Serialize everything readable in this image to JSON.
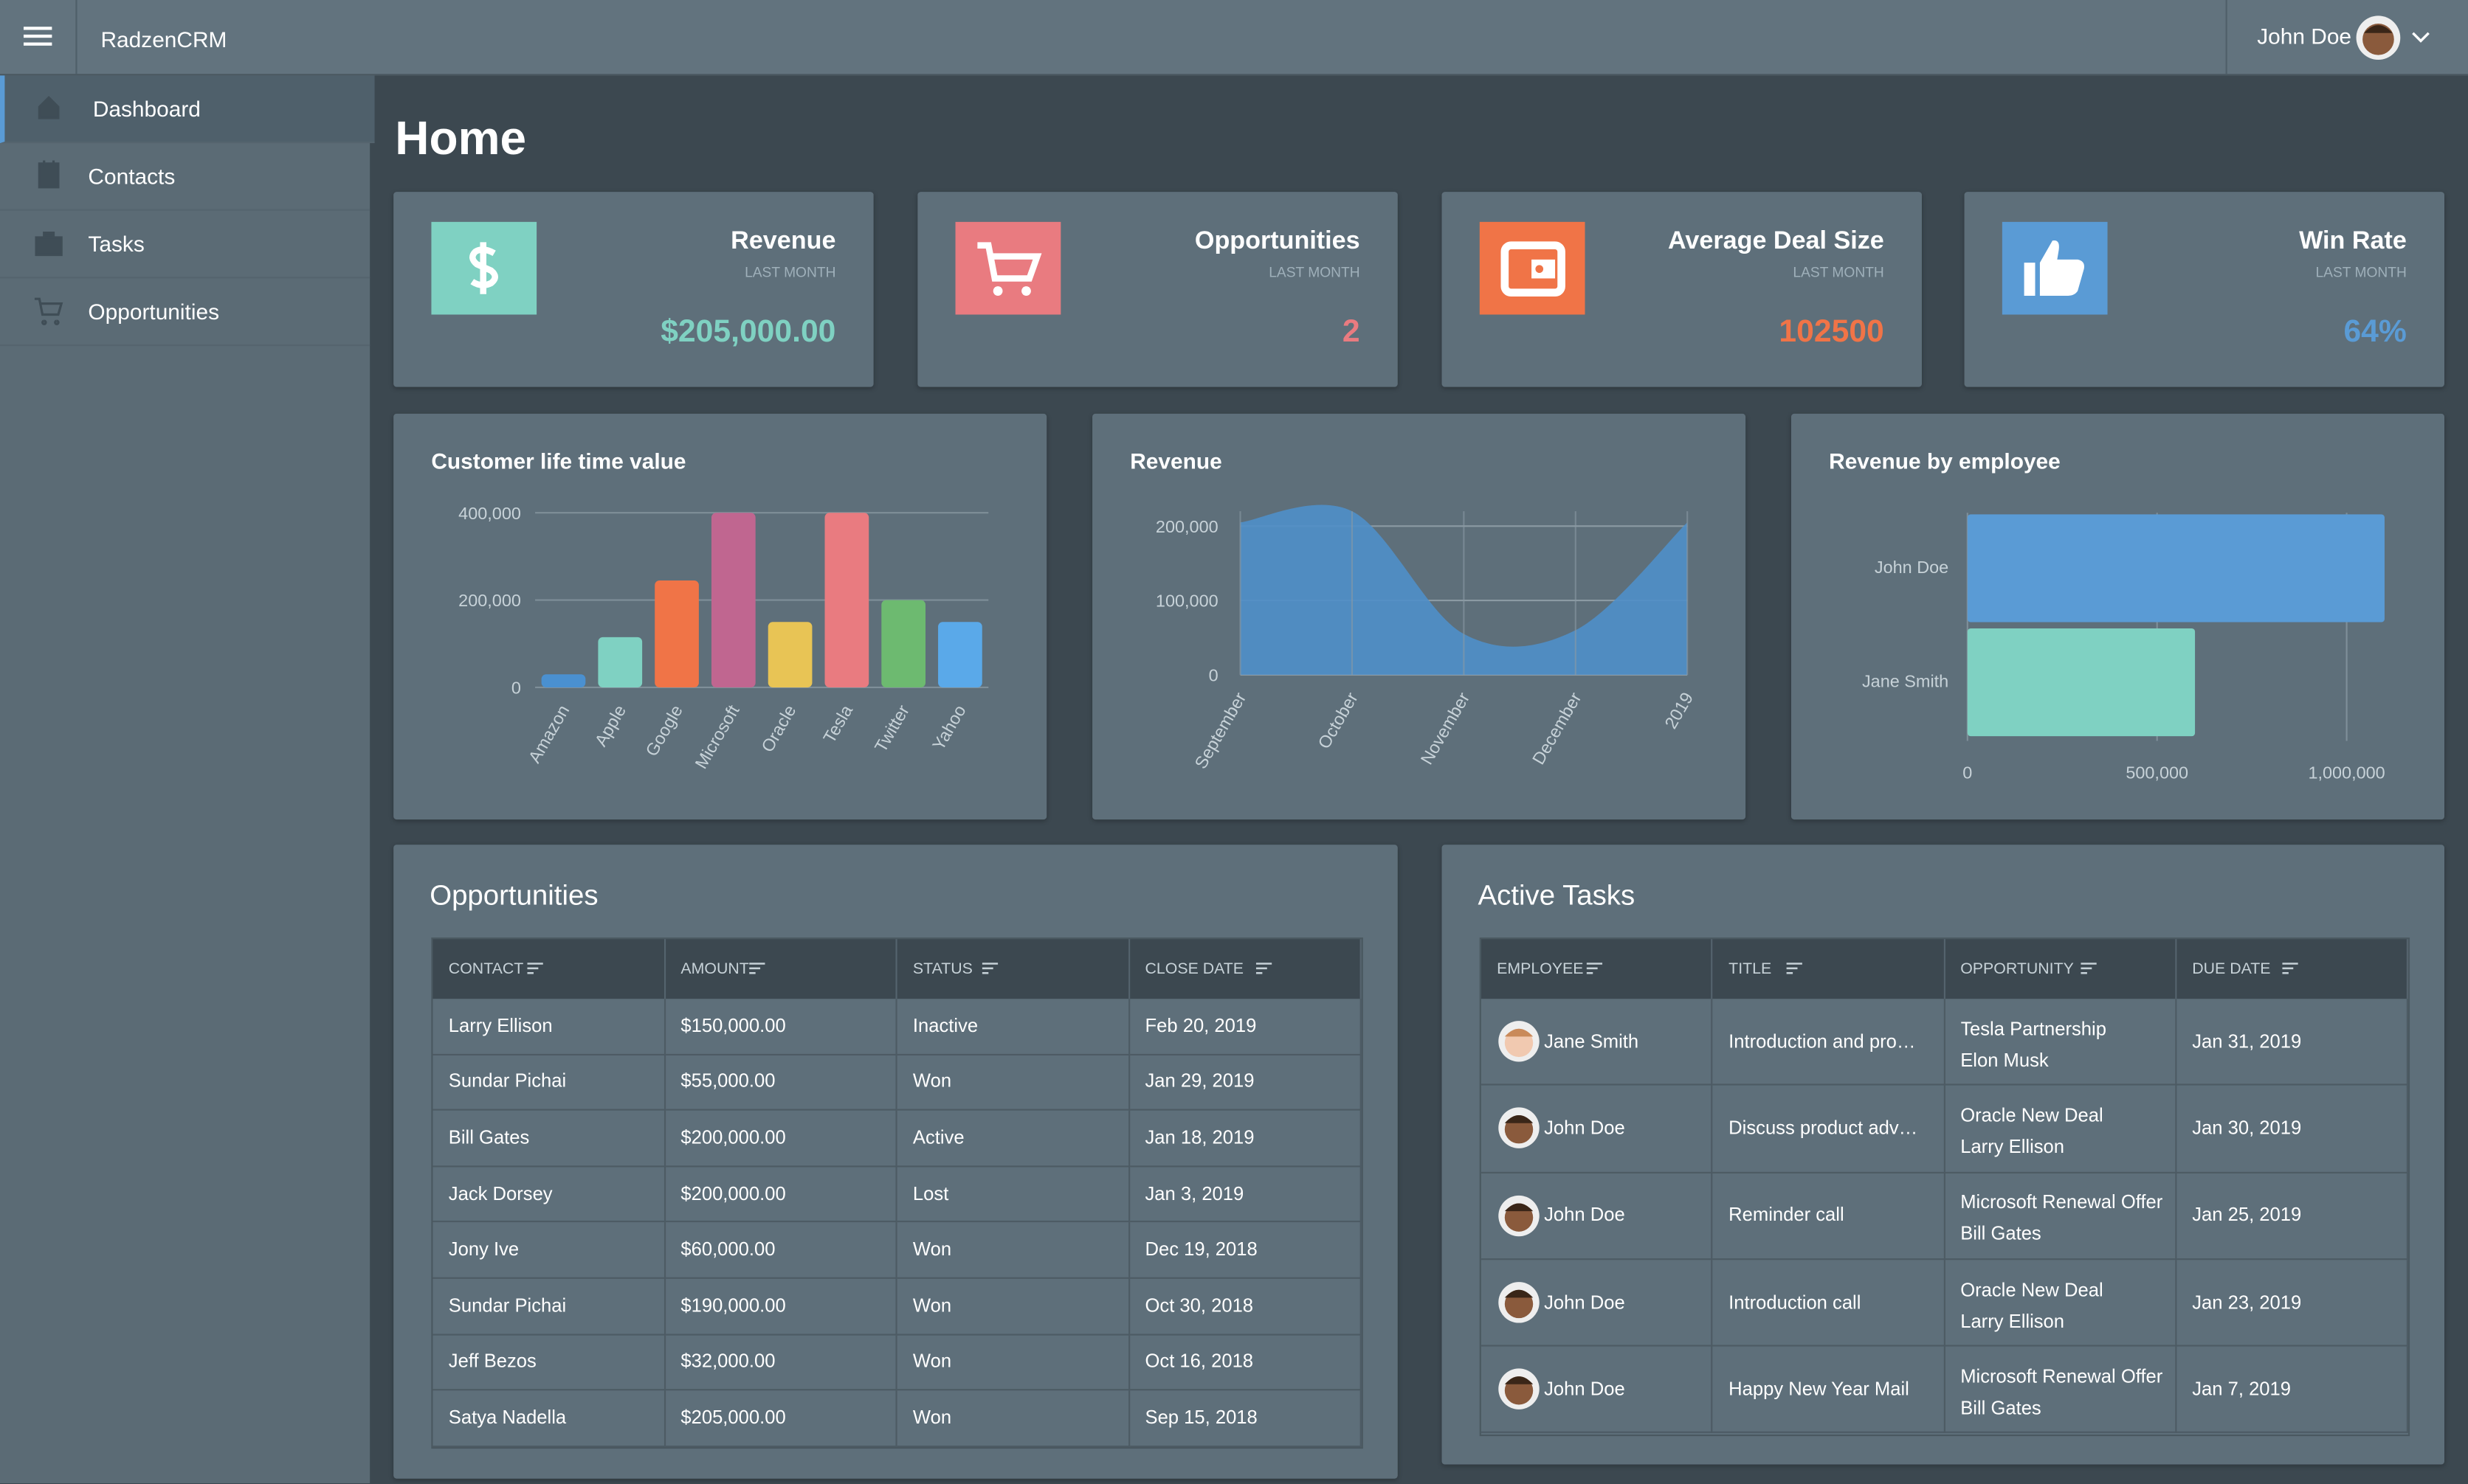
{
  "header": {
    "brand": "RadzenCRM",
    "user": "John Doe"
  },
  "sidebar": {
    "items": [
      "Dashboard",
      "Contacts",
      "Tasks",
      "Opportunities"
    ],
    "active": 0
  },
  "page": {
    "title": "Home"
  },
  "kpis": [
    {
      "title": "Revenue",
      "subtitle": "LAST MONTH",
      "value": "$205,000.00",
      "color": "#7fd1c2"
    },
    {
      "title": "Opportunities",
      "subtitle": "LAST MONTH",
      "value": "2",
      "color": "#e97b80"
    },
    {
      "title": "Average Deal Size",
      "subtitle": "LAST MONTH",
      "value": "102500",
      "color": "#f07447"
    },
    {
      "title": "Win Rate",
      "subtitle": "LAST MONTH",
      "value": "64%",
      "color": "#5a9bd5"
    }
  ],
  "chart_data": [
    {
      "type": "bar",
      "title": "Customer life time value",
      "categories": [
        "Amazon",
        "Apple",
        "Google",
        "Microsoft",
        "Oracle",
        "Tesla",
        "Twitter",
        "Yahoo"
      ],
      "values": [
        30000,
        115000,
        245000,
        400000,
        150000,
        400000,
        200000,
        150000
      ],
      "colors": [
        "#4a90d0",
        "#7fd1c2",
        "#f07447",
        "#c06690",
        "#e8c455",
        "#e97b80",
        "#6dba70",
        "#5aa9e9"
      ],
      "ylim": [
        0,
        400000
      ],
      "yticks": [
        0,
        {
          "value": 200000,
          "label": "200,000"
        },
        {
          "value": 400000,
          "label": "400,000"
        }
      ],
      "grid": true
    },
    {
      "type": "area",
      "title": "Revenue",
      "categories": [
        "September",
        "October",
        "November",
        "December",
        "2019"
      ],
      "values": [
        205000,
        220000,
        55000,
        60000,
        205000
      ],
      "color": "#4f8fc9",
      "ylim": [
        0,
        220000
      ],
      "yticks": [
        0,
        {
          "value": 100000,
          "label": "100,000"
        },
        {
          "value": 200000,
          "label": "200,000"
        }
      ],
      "grid": true
    },
    {
      "type": "hbar",
      "title": "Revenue by employee",
      "categories": [
        "John Doe",
        "Jane Smith"
      ],
      "values": [
        1100000,
        600000
      ],
      "colors": [
        "#5a9bd5",
        "#7fd1c2"
      ],
      "xlim": [
        0,
        1100000
      ],
      "xticks": [
        0,
        {
          "value": 500000,
          "label": "500,000"
        },
        {
          "value": 1000000,
          "label": "1,000,000"
        }
      ],
      "grid": true
    }
  ],
  "opportunities": {
    "title": "Opportunities",
    "columns": [
      "CONTACT",
      "AMOUNT",
      "STATUS",
      "CLOSE DATE"
    ],
    "rows": [
      [
        "Larry Ellison",
        "$150,000.00",
        "Inactive",
        "Feb 20, 2019"
      ],
      [
        "Sundar Pichai",
        "$55,000.00",
        "Won",
        "Jan 29, 2019"
      ],
      [
        "Bill Gates",
        "$200,000.00",
        "Active",
        "Jan 18, 2019"
      ],
      [
        "Jack Dorsey",
        "$200,000.00",
        "Lost",
        "Jan 3, 2019"
      ],
      [
        "Jony Ive",
        "$60,000.00",
        "Won",
        "Dec 19, 2018"
      ],
      [
        "Sundar Pichai",
        "$190,000.00",
        "Won",
        "Oct 30, 2018"
      ],
      [
        "Jeff Bezos",
        "$32,000.00",
        "Won",
        "Oct 16, 2018"
      ],
      [
        "Satya Nadella",
        "$205,000.00",
        "Won",
        "Sep 15, 2018"
      ]
    ]
  },
  "tasks": {
    "title": "Active Tasks",
    "columns": [
      "EMPLOYEE",
      "TITLE",
      "OPPORTUNITY",
      "DUE DATE"
    ],
    "rows": [
      [
        "Jane Smith",
        "Introduction and pro…",
        [
          "Tesla Partnership",
          "Elon Musk"
        ],
        "Jan 31, 2019"
      ],
      [
        "John Doe",
        "Discuss product adv…",
        [
          "Oracle New Deal",
          "Larry Ellison"
        ],
        "Jan 30, 2019"
      ],
      [
        "John Doe",
        "Reminder call",
        [
          "Microsoft Renewal Offer",
          "Bill Gates"
        ],
        "Jan 25, 2019"
      ],
      [
        "John Doe",
        "Introduction call",
        [
          "Oracle New Deal",
          "Larry Ellison"
        ],
        "Jan 23, 2019"
      ],
      [
        "John Doe",
        "Happy New Year Mail",
        [
          "Microsoft Renewal Offer",
          "Bill Gates"
        ],
        "Jan 7, 2019"
      ]
    ]
  }
}
